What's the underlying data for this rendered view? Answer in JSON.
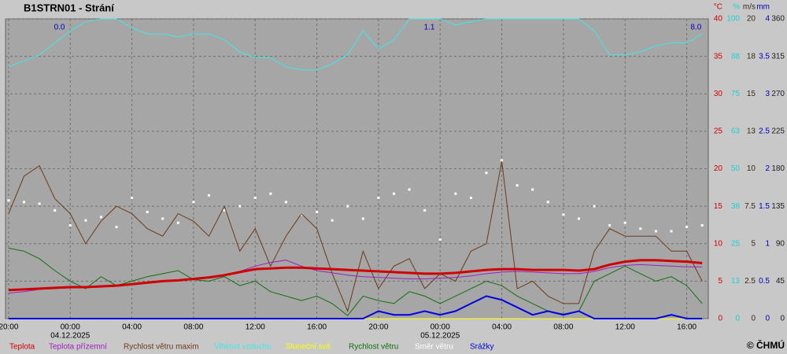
{
  "chart_data": {
    "type": "meteogram",
    "title": "B1STRN01 - Strání",
    "copyright": "© ČHMÚ",
    "xlim": [
      -4.2,
      41.4
    ],
    "xticks": [
      {
        "value": -4,
        "label": "20:00"
      },
      {
        "value": 0,
        "label": "00:00"
      },
      {
        "value": 4,
        "label": "04:00"
      },
      {
        "value": 8,
        "label": "08:00"
      },
      {
        "value": 12,
        "label": "12:00"
      },
      {
        "value": 16,
        "label": "16:00"
      },
      {
        "value": 20,
        "label": "20:00"
      },
      {
        "value": 24,
        "label": "00:00"
      },
      {
        "value": 28,
        "label": "04:00"
      },
      {
        "value": 32,
        "label": "08:00"
      },
      {
        "value": 36,
        "label": "12:00"
      },
      {
        "value": 40,
        "label": "16:00"
      }
    ],
    "date_labels": [
      {
        "value": 0,
        "label": "04.12.2025"
      },
      {
        "value": 24,
        "label": "05.12.2025"
      }
    ],
    "grid": true,
    "axes": [
      {
        "unit": "°C",
        "color": "#d00000",
        "lim": [
          0,
          40
        ],
        "ticks": [
          0,
          5,
          10,
          15,
          20,
          25,
          30,
          35,
          40
        ]
      },
      {
        "unit": "%",
        "color": "#20d0d0",
        "lim": [
          0,
          100
        ],
        "ticks": [
          0,
          {
            "value": 12.5,
            "label": "13"
          },
          25,
          {
            "value": 37.5,
            "label": "38"
          },
          50,
          {
            "value": 62.5,
            "label": "63"
          },
          75,
          {
            "value": 87.5,
            "label": "88"
          },
          100
        ]
      },
      {
        "unit": "m/s",
        "color": "#3a2a1a",
        "lim": [
          0,
          20
        ],
        "ticks": [
          0,
          2.5,
          5,
          7.5,
          10,
          {
            "value": 12.5,
            "label": "13"
          },
          15,
          {
            "value": 17.5,
            "label": "18"
          },
          20
        ]
      },
      {
        "unit": "mm",
        "color": "#0000c0",
        "lim": [
          0,
          4
        ],
        "ticks": [
          0,
          0.5,
          1,
          1.5,
          2,
          2.5,
          3,
          3.5,
          4
        ]
      },
      {
        "color": "#202020",
        "lim": [
          0,
          360
        ],
        "ticks": [
          0,
          45,
          90,
          135,
          180,
          225,
          270,
          315,
          360
        ]
      }
    ],
    "x": [
      -4,
      -3,
      -2,
      -1,
      0,
      1,
      2,
      3,
      4,
      5,
      6,
      7,
      8,
      9,
      10,
      11,
      12,
      13,
      14,
      15,
      16,
      17,
      18,
      19,
      20,
      21,
      22,
      23,
      24,
      25,
      26,
      27,
      28,
      29,
      30,
      31,
      32,
      33,
      34,
      35,
      36,
      37,
      38,
      39,
      40,
      41
    ],
    "series": [
      {
        "name": "Teplota",
        "color": "#d00000",
        "axis": 0,
        "style": "line",
        "width": 3,
        "values": [
          3.8,
          3.9,
          4.0,
          4.1,
          4.2,
          4.2,
          4.3,
          4.4,
          4.6,
          4.8,
          5.0,
          5.1,
          5.3,
          5.5,
          5.8,
          6.2,
          6.6,
          6.7,
          6.8,
          6.8,
          6.7,
          6.6,
          6.5,
          6.4,
          6.3,
          6.2,
          6.1,
          6.0,
          6.0,
          6.1,
          6.3,
          6.5,
          6.6,
          6.6,
          6.5,
          6.5,
          6.5,
          6.4,
          6.6,
          7.2,
          7.6,
          7.8,
          7.8,
          7.7,
          7.6,
          7.4
        ]
      },
      {
        "name": "Teplota přízemní",
        "color": "#a020c0",
        "axis": 0,
        "style": "line",
        "width": 1,
        "values": [
          3.4,
          3.6,
          3.9,
          4.0,
          4.1,
          4.1,
          4.2,
          4.3,
          4.5,
          4.7,
          4.9,
          5.1,
          5.2,
          5.4,
          5.7,
          6.3,
          7.0,
          7.5,
          7.8,
          7.0,
          6.4,
          6.1,
          5.8,
          5.6,
          5.5,
          5.4,
          5.3,
          5.3,
          5.4,
          5.5,
          5.7,
          6.0,
          6.2,
          6.3,
          6.2,
          6.1,
          6.0,
          6.0,
          6.3,
          6.8,
          7.1,
          7.2,
          7.1,
          7.0,
          6.9,
          6.9
        ]
      },
      {
        "name": "Rychlost větru maxim",
        "color": "#6b3a1a",
        "axis": 2,
        "style": "line",
        "width": 1,
        "values": [
          7.0,
          9.5,
          10.2,
          8.0,
          7.0,
          5.0,
          6.5,
          7.5,
          7.0,
          6.0,
          5.5,
          7.0,
          6.5,
          5.5,
          7.5,
          4.5,
          6.0,
          3.5,
          5.5,
          7.0,
          6.0,
          3.0,
          0.5,
          4.5,
          2.0,
          3.5,
          4.0,
          2.0,
          3.0,
          2.5,
          4.5,
          5.0,
          10.5,
          2.0,
          2.5,
          1.5,
          1.0,
          1.0,
          4.5,
          6.0,
          5.5,
          5.5,
          5.5,
          4.5,
          4.5,
          2.5
        ]
      },
      {
        "name": "Vlhkost vzduchu",
        "color": "#40e8e8",
        "axis": 1,
        "style": "line",
        "width": 1,
        "values": [
          84,
          86,
          88,
          92,
          96,
          99,
          100,
          100,
          97,
          95,
          95,
          94,
          95,
          95,
          93,
          89,
          87,
          87,
          84,
          83,
          83,
          85,
          88,
          96,
          90,
          93,
          100,
          100,
          100,
          98,
          99,
          100,
          100,
          100,
          100,
          100,
          100,
          100,
          96,
          88,
          88,
          89,
          91,
          92,
          92,
          95
        ]
      },
      {
        "name": "Sluneční svit",
        "color": "#ffff00",
        "axis": 1,
        "style": "line",
        "width": 1,
        "values": [
          0,
          0,
          0,
          0,
          0,
          0,
          0,
          0,
          0,
          0,
          0,
          0,
          0,
          0,
          0,
          0,
          0,
          0,
          0,
          0,
          0,
          0,
          0,
          0,
          0,
          0,
          0,
          0,
          0,
          0,
          0,
          0,
          0,
          0,
          0,
          0,
          0,
          0,
          0,
          0,
          0,
          0,
          0,
          0,
          0,
          0
        ]
      },
      {
        "name": "Rychlost větru",
        "color": "#107010",
        "axis": 2,
        "style": "line",
        "width": 1,
        "values": [
          4.7,
          4.5,
          4.0,
          3.2,
          2.5,
          2.0,
          2.8,
          2.2,
          2.5,
          2.8,
          3.0,
          3.2,
          2.6,
          2.5,
          2.8,
          2.2,
          2.5,
          1.8,
          1.5,
          1.2,
          1.5,
          1.0,
          0.2,
          1.5,
          1.2,
          1.0,
          1.8,
          1.5,
          1.0,
          1.5,
          2.0,
          2.5,
          2.2,
          1.5,
          1.0,
          0.5,
          0.3,
          0.5,
          2.5,
          3.0,
          3.5,
          3.0,
          2.5,
          2.8,
          2.2,
          1.0
        ]
      },
      {
        "name": "Směr větru",
        "color": "#ffffff",
        "axis": 4,
        "style": "dots",
        "values": [
          142,
          140,
          138,
          130,
          112,
          118,
          122,
          110,
          145,
          128,
          120,
          115,
          140,
          148,
          130,
          135,
          145,
          150,
          140,
          125,
          128,
          118,
          135,
          120,
          145,
          150,
          155,
          130,
          95,
          150,
          145,
          175,
          190,
          160,
          155,
          140,
          125,
          120,
          135,
          112,
          115,
          108,
          105,
          105,
          110,
          112
        ]
      },
      {
        "name": "Srážky",
        "color": "#0000e0",
        "axis": 3,
        "style": "line",
        "width": 2,
        "values": [
          0,
          0,
          0,
          0,
          0,
          0,
          0,
          0,
          0,
          0,
          0,
          0,
          0,
          0,
          0,
          0,
          0,
          0,
          0,
          0,
          0,
          0,
          0,
          0,
          0.1,
          0.05,
          0.05,
          0.1,
          0.05,
          0.1,
          0.2,
          0.3,
          0.25,
          0.15,
          0.05,
          0.1,
          0.05,
          0.1,
          0,
          0,
          0,
          0,
          0,
          0.05,
          0,
          0
        ]
      }
    ],
    "annotations": [
      {
        "x": -0.7,
        "label": "0.0"
      },
      {
        "x": 23.3,
        "label": "1.1"
      },
      {
        "x": 40.6,
        "label": "8.0"
      }
    ]
  }
}
